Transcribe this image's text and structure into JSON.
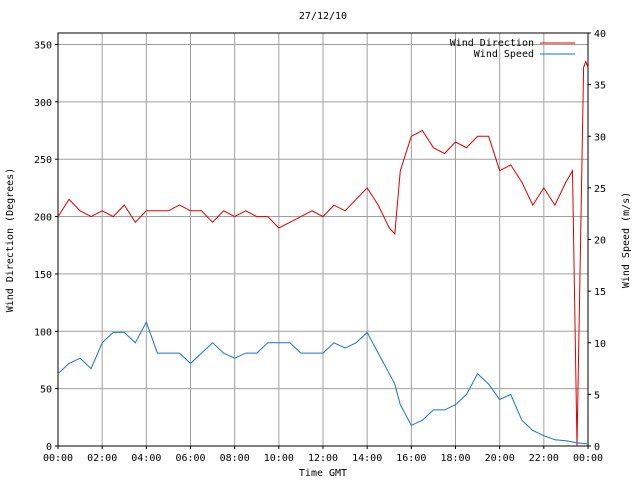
{
  "chart_data": {
    "type": "line",
    "title": "27/12/10",
    "xlabel": "Time GMT",
    "ylabel_left": "Wind Direction (Degrees)",
    "ylabel_right": "Wind Speed (m/s)",
    "x_ticks": [
      "00:00",
      "02:00",
      "04:00",
      "06:00",
      "08:00",
      "10:00",
      "12:00",
      "14:00",
      "16:00",
      "18:00",
      "20:00",
      "22:00",
      "00:00"
    ],
    "x_range_hours": [
      0,
      24
    ],
    "ylim_left": [
      0,
      360
    ],
    "y_ticks_left": [
      "0",
      "50",
      "100",
      "150",
      "200",
      "250",
      "300",
      "350"
    ],
    "ylim_right": [
      0,
      40
    ],
    "y_ticks_right": [
      "0",
      "5",
      "10",
      "15",
      "20",
      "25",
      "30",
      "35",
      "40"
    ],
    "grid": true,
    "legend_position": "top-right",
    "series": [
      {
        "name": "Wind Direction",
        "axis": "left",
        "color": "#dd0000",
        "x_hours": [
          0,
          0.5,
          1,
          1.5,
          2,
          2.5,
          3,
          3.5,
          4,
          4.5,
          5,
          5.5,
          6,
          6.5,
          7,
          7.5,
          8,
          8.5,
          9,
          9.5,
          10,
          10.5,
          11,
          11.5,
          12,
          12.5,
          13,
          13.5,
          14,
          14.5,
          15,
          15.25,
          15.5,
          16,
          16.5,
          17,
          17.5,
          18,
          18.5,
          19,
          19.5,
          20,
          20.5,
          21,
          21.5,
          22,
          22.5,
          23,
          23.3,
          23.5,
          23.7,
          23.8,
          23.9,
          24
        ],
        "values": [
          200,
          215,
          205,
          200,
          205,
          200,
          210,
          195,
          205,
          205,
          205,
          210,
          205,
          205,
          195,
          205,
          200,
          205,
          200,
          200,
          190,
          195,
          200,
          205,
          200,
          210,
          205,
          215,
          225,
          210,
          190,
          185,
          240,
          270,
          275,
          260,
          255,
          265,
          260,
          270,
          270,
          240,
          245,
          230,
          210,
          225,
          210,
          230,
          240,
          0,
          220,
          330,
          335,
          330
        ]
      },
      {
        "name": "Wind Speed",
        "axis": "right",
        "color": "#1a73c8",
        "x_hours": [
          0,
          0.5,
          1,
          1.5,
          2,
          2.5,
          3,
          3.5,
          4,
          4.5,
          5,
          5.5,
          6,
          6.5,
          7,
          7.5,
          8,
          8.5,
          9,
          9.5,
          10,
          10.5,
          11,
          11.5,
          12,
          12.5,
          13,
          13.5,
          14,
          14.5,
          15,
          15.25,
          15.5,
          16,
          16.5,
          17,
          17.5,
          18,
          18.5,
          19,
          19.5,
          20,
          20.5,
          21,
          21.5,
          22,
          22.5,
          23,
          23.5,
          24
        ],
        "values": [
          7,
          8,
          8.5,
          7.5,
          10,
          11,
          11,
          10,
          12,
          9,
          9,
          9,
          8,
          9,
          10,
          9,
          8.5,
          9,
          9,
          10,
          10,
          10,
          9,
          9,
          9,
          10,
          9.5,
          10,
          11,
          9,
          7,
          6,
          4,
          2,
          2.5,
          3.5,
          3.5,
          4,
          5,
          7,
          6,
          4.5,
          5,
          2.5,
          1.5,
          1,
          0.6,
          0.5,
          0.3,
          0.2
        ]
      }
    ]
  }
}
